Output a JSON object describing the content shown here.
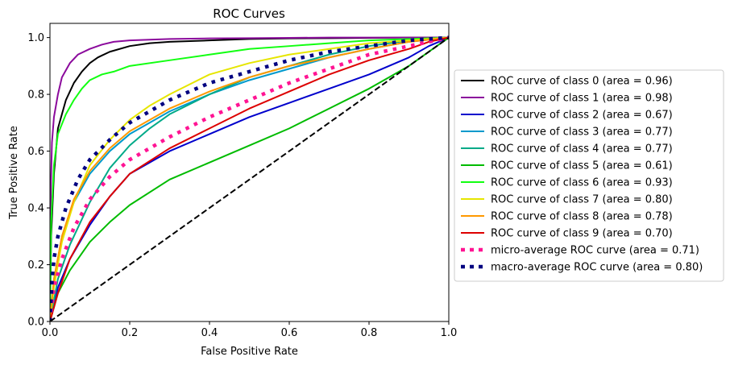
{
  "chart_data": {
    "type": "line",
    "title": "ROC Curves",
    "xlabel": "False Positive Rate",
    "ylabel": "True Positive Rate",
    "xlim": [
      0,
      1
    ],
    "ylim": [
      0,
      1.05
    ],
    "xticks": [
      "0.0",
      "0.2",
      "0.4",
      "0.6",
      "0.8",
      "1.0"
    ],
    "yticks": [
      "0.0",
      "0.2",
      "0.4",
      "0.6",
      "0.8",
      "1.0"
    ],
    "grid": false,
    "legend_position": "right, outside plot area",
    "series": [
      {
        "name": "ROC curve of class 0 (area = 0.96)",
        "color": "#000000",
        "style": "solid",
        "x": [
          0,
          0.003,
          0.01,
          0.02,
          0.04,
          0.06,
          0.08,
          0.1,
          0.12,
          0.15,
          0.2,
          0.25,
          0.3,
          0.4,
          0.5,
          0.6,
          0.7,
          0.8,
          0.9,
          1.0
        ],
        "y": [
          0,
          0.3,
          0.52,
          0.68,
          0.78,
          0.84,
          0.88,
          0.91,
          0.93,
          0.95,
          0.97,
          0.98,
          0.985,
          0.99,
          0.995,
          0.997,
          0.998,
          0.999,
          1.0,
          1.0
        ]
      },
      {
        "name": "ROC curve of class 1 (area = 0.98)",
        "color": "#8b0a9c",
        "style": "solid",
        "x": [
          0,
          0.002,
          0.005,
          0.01,
          0.02,
          0.03,
          0.05,
          0.07,
          0.1,
          0.13,
          0.16,
          0.2,
          0.3,
          0.4,
          0.5,
          0.6,
          0.7,
          0.8,
          0.9,
          1.0
        ],
        "y": [
          0,
          0.45,
          0.63,
          0.72,
          0.8,
          0.86,
          0.91,
          0.94,
          0.96,
          0.975,
          0.985,
          0.99,
          0.995,
          0.997,
          0.998,
          0.999,
          1.0,
          1.0,
          1.0,
          1.0
        ]
      },
      {
        "name": "ROC curve of class 2 (area = 0.67)",
        "color": "#0000cc",
        "style": "solid",
        "x": [
          0,
          0.02,
          0.05,
          0.1,
          0.15,
          0.2,
          0.3,
          0.4,
          0.5,
          0.6,
          0.7,
          0.8,
          0.9,
          0.95,
          1.0
        ],
        "y": [
          0,
          0.12,
          0.22,
          0.34,
          0.44,
          0.52,
          0.6,
          0.66,
          0.72,
          0.77,
          0.82,
          0.87,
          0.93,
          0.97,
          1.0
        ]
      },
      {
        "name": "ROC curve of class 3 (area = 0.77)",
        "color": "#0099cc",
        "style": "solid",
        "x": [
          0,
          0.01,
          0.03,
          0.06,
          0.1,
          0.15,
          0.2,
          0.3,
          0.4,
          0.5,
          0.6,
          0.7,
          0.8,
          0.9,
          1.0
        ],
        "y": [
          0,
          0.14,
          0.3,
          0.42,
          0.52,
          0.6,
          0.66,
          0.74,
          0.8,
          0.85,
          0.89,
          0.93,
          0.96,
          0.985,
          1.0
        ]
      },
      {
        "name": "ROC curve of class 4 (area = 0.77)",
        "color": "#00aa88",
        "style": "solid",
        "x": [
          0,
          0.02,
          0.05,
          0.1,
          0.15,
          0.2,
          0.25,
          0.3,
          0.4,
          0.5,
          0.6,
          0.7,
          0.8,
          0.9,
          1.0
        ],
        "y": [
          0,
          0.15,
          0.27,
          0.42,
          0.54,
          0.62,
          0.68,
          0.73,
          0.8,
          0.86,
          0.9,
          0.94,
          0.97,
          0.99,
          1.0
        ]
      },
      {
        "name": "ROC curve of class 5 (area = 0.61)",
        "color": "#00bb00",
        "style": "solid",
        "x": [
          0,
          0.02,
          0.05,
          0.1,
          0.15,
          0.2,
          0.3,
          0.4,
          0.5,
          0.6,
          0.7,
          0.8,
          0.85,
          0.9,
          0.95,
          1.0
        ],
        "y": [
          0,
          0.1,
          0.18,
          0.28,
          0.35,
          0.41,
          0.5,
          0.56,
          0.62,
          0.68,
          0.75,
          0.82,
          0.86,
          0.9,
          0.95,
          1.0
        ]
      },
      {
        "name": "ROC curve of class 6 (area = 0.93)",
        "color": "#11ff11",
        "style": "solid",
        "x": [
          0,
          0.003,
          0.01,
          0.02,
          0.04,
          0.06,
          0.08,
          0.1,
          0.13,
          0.16,
          0.2,
          0.3,
          0.4,
          0.5,
          0.6,
          0.7,
          0.8,
          0.9,
          1.0
        ],
        "y": [
          0,
          0.35,
          0.55,
          0.66,
          0.73,
          0.78,
          0.82,
          0.85,
          0.87,
          0.88,
          0.9,
          0.92,
          0.94,
          0.96,
          0.97,
          0.98,
          0.99,
          0.995,
          1.0
        ]
      },
      {
        "name": "ROC curve of class 7 (area = 0.80)",
        "color": "#e6e600",
        "style": "solid",
        "x": [
          0,
          0.01,
          0.03,
          0.06,
          0.1,
          0.15,
          0.2,
          0.25,
          0.3,
          0.4,
          0.5,
          0.6,
          0.7,
          0.8,
          0.9,
          1.0
        ],
        "y": [
          0,
          0.12,
          0.28,
          0.42,
          0.55,
          0.64,
          0.71,
          0.76,
          0.8,
          0.87,
          0.91,
          0.94,
          0.96,
          0.98,
          0.99,
          1.0
        ]
      },
      {
        "name": "ROC curve of class 8 (area = 0.78)",
        "color": "#ff9900",
        "style": "solid",
        "x": [
          0,
          0.01,
          0.03,
          0.06,
          0.1,
          0.15,
          0.2,
          0.3,
          0.4,
          0.5,
          0.6,
          0.7,
          0.8,
          0.9,
          1.0
        ],
        "y": [
          0,
          0.15,
          0.3,
          0.43,
          0.53,
          0.61,
          0.67,
          0.75,
          0.81,
          0.86,
          0.9,
          0.93,
          0.96,
          0.985,
          1.0
        ]
      },
      {
        "name": "ROC curve of class 9 (area = 0.70)",
        "color": "#dd0000",
        "style": "solid",
        "x": [
          0,
          0.02,
          0.05,
          0.1,
          0.15,
          0.2,
          0.3,
          0.4,
          0.5,
          0.6,
          0.7,
          0.8,
          0.9,
          0.95,
          1.0
        ],
        "y": [
          0,
          0.1,
          0.22,
          0.35,
          0.44,
          0.52,
          0.61,
          0.68,
          0.75,
          0.81,
          0.87,
          0.92,
          0.96,
          0.985,
          1.0
        ]
      },
      {
        "name": "micro-average ROC curve (area = 0.71)",
        "color": "#ff1493",
        "style": "dotted",
        "x": [
          0,
          0.01,
          0.03,
          0.06,
          0.1,
          0.15,
          0.2,
          0.3,
          0.4,
          0.5,
          0.6,
          0.7,
          0.8,
          0.9,
          1.0
        ],
        "y": [
          0,
          0.12,
          0.22,
          0.33,
          0.43,
          0.51,
          0.57,
          0.65,
          0.72,
          0.78,
          0.84,
          0.89,
          0.94,
          0.97,
          1.0
        ]
      },
      {
        "name": "macro-average ROC curve (area = 0.80)",
        "color": "#000080",
        "style": "dotted",
        "x": [
          0,
          0.005,
          0.01,
          0.02,
          0.04,
          0.07,
          0.1,
          0.15,
          0.2,
          0.3,
          0.4,
          0.5,
          0.6,
          0.7,
          0.8,
          0.9,
          1.0
        ],
        "y": [
          0,
          0.14,
          0.22,
          0.3,
          0.4,
          0.5,
          0.57,
          0.64,
          0.7,
          0.78,
          0.84,
          0.88,
          0.92,
          0.95,
          0.97,
          0.99,
          1.0
        ]
      },
      {
        "name": "",
        "color": "#000000",
        "style": "dashed",
        "x": [
          0,
          1
        ],
        "y": [
          0,
          1
        ]
      }
    ]
  }
}
